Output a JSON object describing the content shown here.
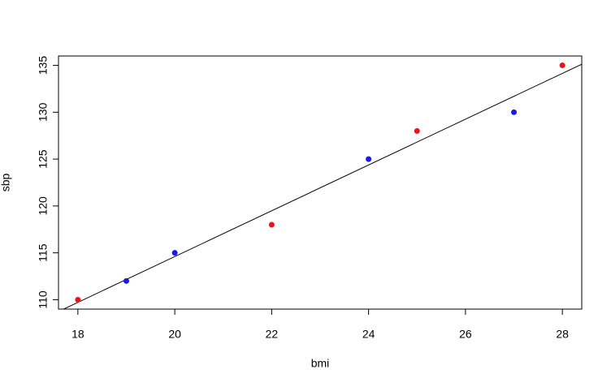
{
  "chart_data": {
    "type": "scatter",
    "x_label": "bmi",
    "y_label": "sbp",
    "x": [
      18,
      19,
      20,
      22,
      24,
      25,
      27,
      28
    ],
    "y": [
      110,
      112,
      115,
      118,
      125,
      128,
      130,
      135
    ],
    "colors": [
      "#e8141c",
      "#1a1ae8",
      "#1a1ae8",
      "#e8141c",
      "#1a1ae8",
      "#e8141c",
      "#1a1ae8",
      "#e8141c"
    ],
    "xlim": [
      17.6,
      28.4
    ],
    "ylim": [
      109,
      136
    ],
    "xticks": [
      18,
      20,
      22,
      24,
      26,
      28
    ],
    "yticks": [
      110,
      115,
      120,
      125,
      130,
      135
    ],
    "fit_line": true
  }
}
